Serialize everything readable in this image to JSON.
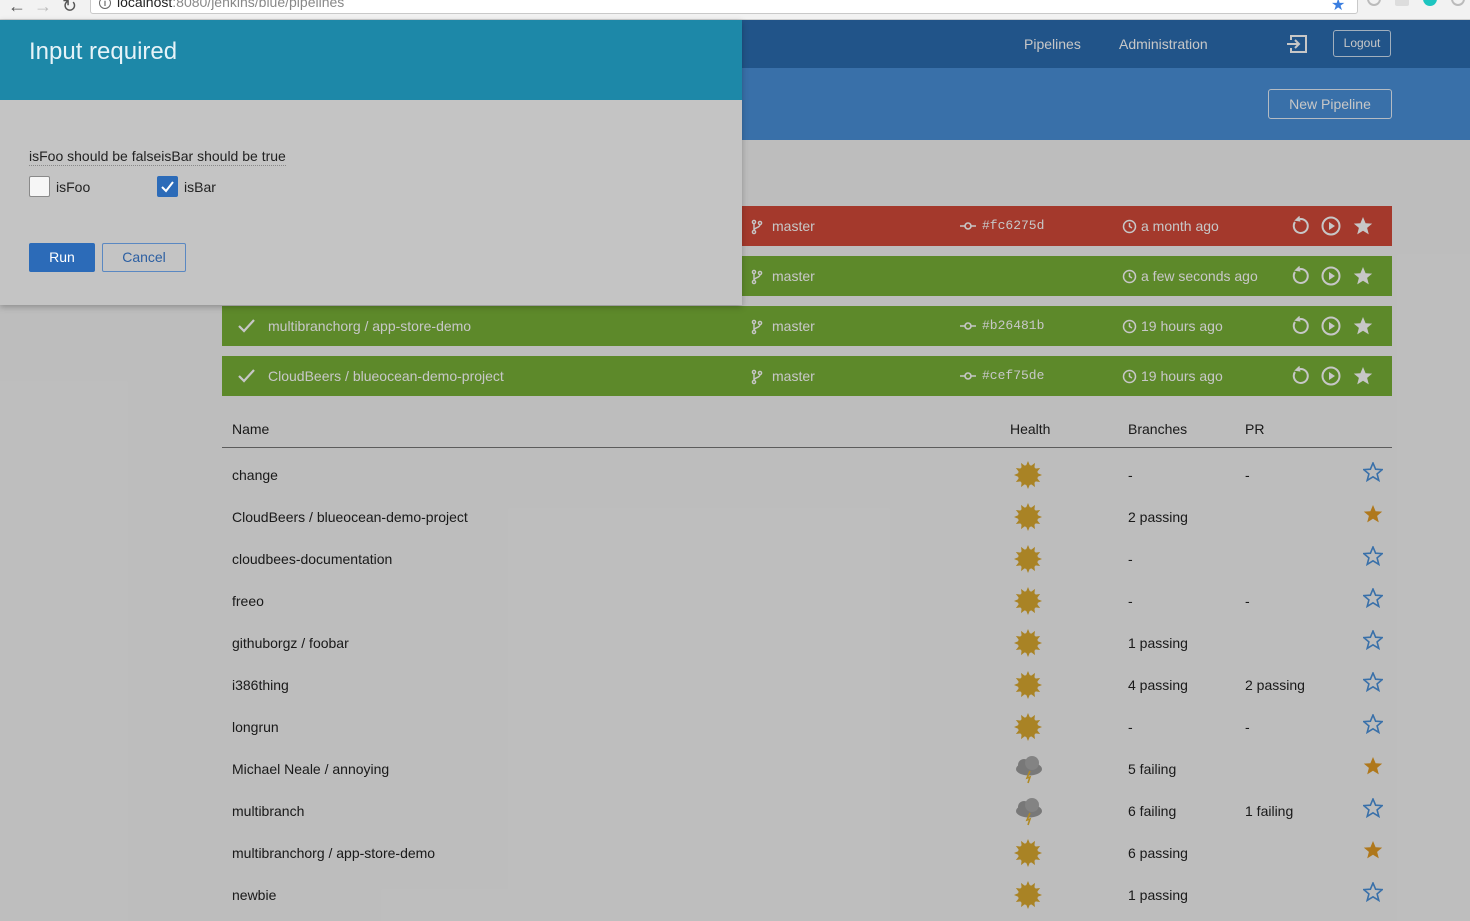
{
  "browser": {
    "url_host": "localhost",
    "url_path": ":8080/jenkins/blue/pipelines"
  },
  "nav": {
    "links": [
      "Pipelines",
      "Administration"
    ],
    "logout": "Logout",
    "new_pipeline": "New Pipeline"
  },
  "modal": {
    "title": "Input required",
    "message": "isFoo should be falseisBar should be true",
    "params": [
      {
        "label": "isFoo",
        "checked": false
      },
      {
        "label": "isBar",
        "checked": true
      }
    ],
    "run_label": "Run",
    "cancel_label": "Cancel"
  },
  "favorites": [
    {
      "status": "failure",
      "name": "",
      "branch": "master",
      "commit": "#fc6275d",
      "time": "a month ago"
    },
    {
      "status": "success",
      "name": "",
      "branch": "master",
      "commit": "",
      "time": "a few seconds ago"
    },
    {
      "status": "success",
      "name": "multibranchorg / app-store-demo",
      "branch": "master",
      "commit": "#b26481b",
      "time": "19 hours ago"
    },
    {
      "status": "success",
      "name": "CloudBeers / blueocean-demo-project",
      "branch": "master",
      "commit": "#cef75de",
      "time": "19 hours ago"
    }
  ],
  "table": {
    "headers": {
      "name": "Name",
      "health": "Health",
      "branches": "Branches",
      "pr": "PR"
    },
    "rows": [
      {
        "name": "change",
        "health": "sunny",
        "branches": "-",
        "pr": "-",
        "favorite": false
      },
      {
        "name": "CloudBeers / blueocean-demo-project",
        "health": "sunny",
        "branches": "2 passing",
        "pr": "",
        "favorite": true
      },
      {
        "name": "cloudbees-documentation",
        "health": "sunny",
        "branches": "-",
        "pr": "",
        "favorite": false
      },
      {
        "name": "freeo",
        "health": "sunny",
        "branches": "-",
        "pr": "-",
        "favorite": false
      },
      {
        "name": "githuborgz / foobar",
        "health": "sunny",
        "branches": "1 passing",
        "pr": "",
        "favorite": false
      },
      {
        "name": "i386thing",
        "health": "sunny",
        "branches": "4 passing",
        "pr": "2 passing",
        "favorite": false
      },
      {
        "name": "longrun",
        "health": "sunny",
        "branches": "-",
        "pr": "-",
        "favorite": false
      },
      {
        "name": "Michael Neale / annoying",
        "health": "stormy",
        "branches": "5 failing",
        "pr": "",
        "favorite": true
      },
      {
        "name": "multibranch",
        "health": "stormy",
        "branches": "6 failing",
        "pr": "1 failing",
        "favorite": false
      },
      {
        "name": "multibranchorg / app-store-demo",
        "health": "sunny",
        "branches": "6 passing",
        "pr": "",
        "favorite": true
      },
      {
        "name": "newbie",
        "health": "sunny",
        "branches": "1 passing",
        "pr": "",
        "favorite": false
      }
    ]
  },
  "colors": {
    "nav": "#2b6cb0",
    "subheader": "#4a90d9",
    "failure": "#d24939",
    "success": "#78b037",
    "modal_header": "#1d88a8",
    "favorite_star": "#e09a24",
    "outline_star": "#4a90d9"
  }
}
